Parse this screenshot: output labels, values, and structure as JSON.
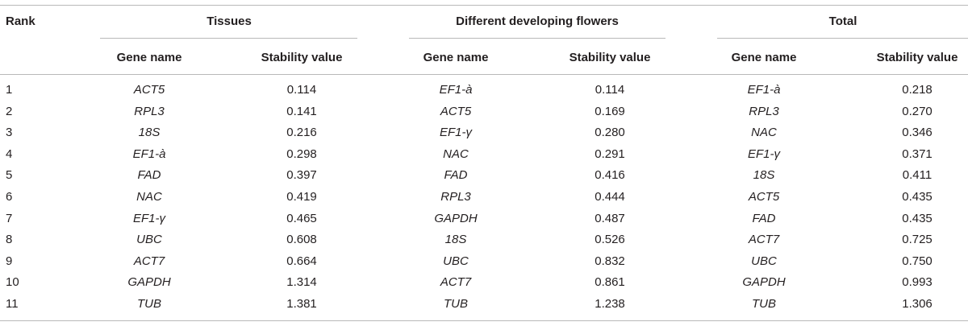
{
  "table": {
    "rank_header": "Rank",
    "groups": [
      "Tissues",
      "Different developing flowers",
      "Total"
    ],
    "subheaders": [
      "Gene name",
      "Stability value"
    ],
    "rows": [
      {
        "rank": "1",
        "cols": [
          "ACT5",
          "0.114",
          "EF1-à",
          "0.114",
          "EF1-à",
          "0.218"
        ]
      },
      {
        "rank": "2",
        "cols": [
          "RPL3",
          "0.141",
          "ACT5",
          "0.169",
          "RPL3",
          "0.270"
        ]
      },
      {
        "rank": "3",
        "cols": [
          "18S",
          "0.216",
          "EF1-γ",
          "0.280",
          "NAC",
          "0.346"
        ]
      },
      {
        "rank": "4",
        "cols": [
          "EF1-à",
          "0.298",
          "NAC",
          "0.291",
          "EF1-γ",
          "0.371"
        ]
      },
      {
        "rank": "5",
        "cols": [
          "FAD",
          "0.397",
          "FAD",
          "0.416",
          "18S",
          "0.411"
        ]
      },
      {
        "rank": "6",
        "cols": [
          "NAC",
          "0.419",
          "RPL3",
          "0.444",
          "ACT5",
          "0.435"
        ]
      },
      {
        "rank": "7",
        "cols": [
          "EF1-γ",
          "0.465",
          "GAPDH",
          "0.487",
          "FAD",
          "0.435"
        ]
      },
      {
        "rank": "8",
        "cols": [
          "UBC",
          "0.608",
          "18S",
          "0.526",
          "ACT7",
          "0.725"
        ]
      },
      {
        "rank": "9",
        "cols": [
          "ACT7",
          "0.664",
          "UBC",
          "0.832",
          "UBC",
          "0.750"
        ]
      },
      {
        "rank": "10",
        "cols": [
          "GAPDH",
          "1.314",
          "ACT7",
          "0.861",
          "GAPDH",
          "0.993"
        ]
      },
      {
        "rank": "11",
        "cols": [
          "TUB",
          "1.381",
          "TUB",
          "1.238",
          "TUB",
          "1.306"
        ]
      }
    ]
  }
}
